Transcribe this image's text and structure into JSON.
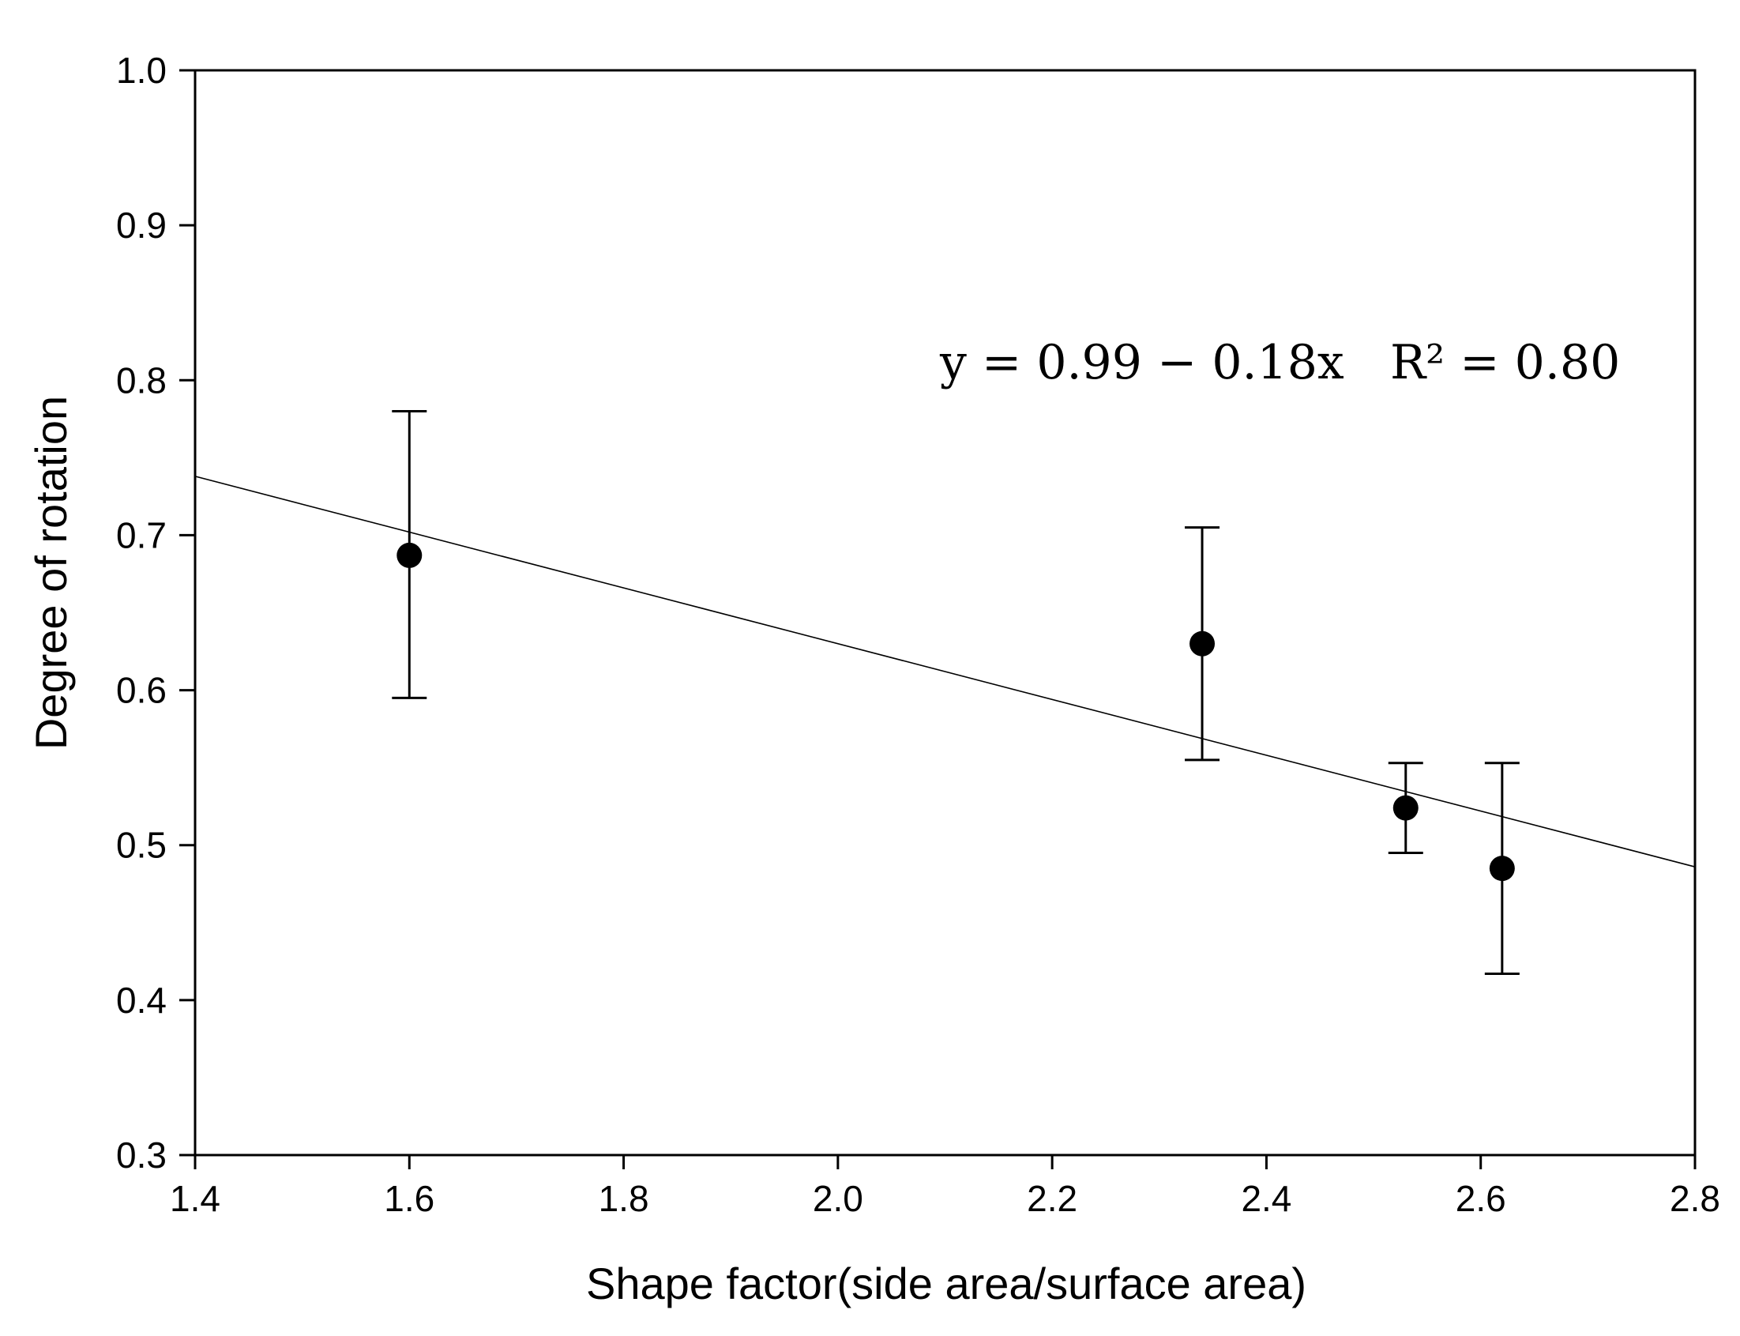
{
  "chart_data": {
    "type": "scatter",
    "title": "",
    "xlabel": "Shape factor(side area/surface area)",
    "ylabel": "Degree of rotation",
    "xlim": [
      1.4,
      2.8
    ],
    "ylim": [
      0.3,
      1.0
    ],
    "xticks": [
      "1.4",
      "1.6",
      "1.8",
      "2.0",
      "2.2",
      "2.4",
      "2.6",
      "2.8"
    ],
    "yticks": [
      "0.3",
      "0.4",
      "0.5",
      "0.6",
      "0.7",
      "0.8",
      "0.9",
      "1.0"
    ],
    "grid": false,
    "series": [
      {
        "name": "Degree of rotation",
        "x": [
          1.6,
          2.34,
          2.53,
          2.62
        ],
        "y": [
          0.687,
          0.63,
          0.524,
          0.485
        ],
        "error_low": [
          0.595,
          0.555,
          0.495,
          0.417
        ],
        "error_high": [
          0.78,
          0.705,
          0.553,
          0.553
        ]
      }
    ],
    "fit": {
      "intercept": 0.99,
      "slope": -0.18,
      "equation": "y = 0.99 − 0.18x",
      "r2_label": "R² = 0.80"
    }
  },
  "colors": {
    "axis": "#000000",
    "marker": "#000000",
    "fit_line": "#000000"
  }
}
